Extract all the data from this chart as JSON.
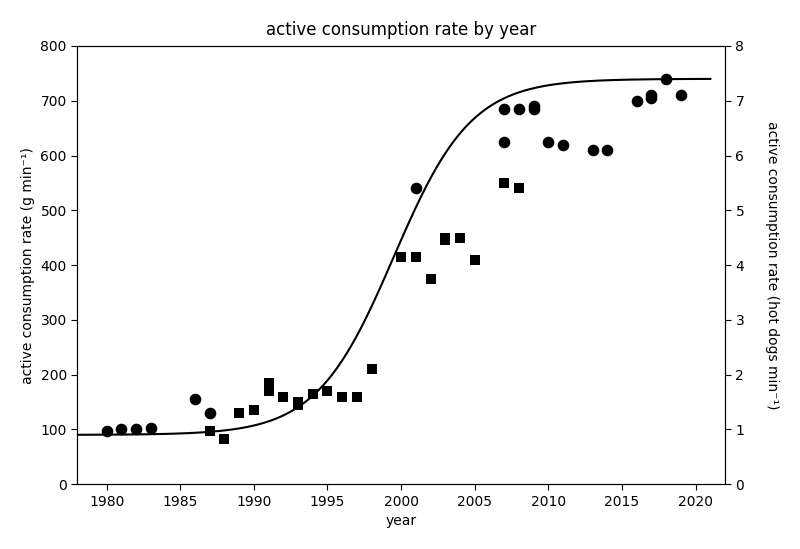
{
  "title": "active consumption rate by year",
  "xlabel": "year",
  "ylabel_left": "active consumption rate (g min⁻¹)",
  "ylabel_right": "active consumption rate (hot dogs min⁻¹)",
  "ylim_left": [
    0,
    800
  ],
  "ylim_right": [
    0,
    8
  ],
  "xlim": [
    1978,
    2022
  ],
  "yticks_left": [
    0,
    100,
    200,
    300,
    400,
    500,
    600,
    700,
    800
  ],
  "yticks_right": [
    0,
    1,
    2,
    3,
    4,
    5,
    6,
    7,
    8
  ],
  "xticks": [
    1980,
    1985,
    1990,
    1995,
    2000,
    2005,
    2010,
    2015,
    2020
  ],
  "circle_points": [
    [
      1980,
      97
    ],
    [
      1981,
      100
    ],
    [
      1982,
      100
    ],
    [
      1983,
      103
    ],
    [
      1986,
      155
    ],
    [
      1987,
      130
    ],
    [
      2001,
      540
    ],
    [
      2007,
      685
    ],
    [
      2007,
      625
    ],
    [
      2008,
      685
    ],
    [
      2009,
      685
    ],
    [
      2009,
      690
    ],
    [
      2010,
      625
    ],
    [
      2011,
      620
    ],
    [
      2013,
      610
    ],
    [
      2014,
      610
    ],
    [
      2016,
      700
    ],
    [
      2017,
      705
    ],
    [
      2017,
      710
    ],
    [
      2018,
      740
    ],
    [
      2019,
      710
    ]
  ],
  "square_points": [
    [
      1987,
      97
    ],
    [
      1988,
      82
    ],
    [
      1989,
      130
    ],
    [
      1990,
      135
    ],
    [
      1991,
      170
    ],
    [
      1991,
      185
    ],
    [
      1992,
      160
    ],
    [
      1993,
      145
    ],
    [
      1993,
      150
    ],
    [
      1994,
      165
    ],
    [
      1995,
      170
    ],
    [
      1996,
      160
    ],
    [
      1997,
      160
    ],
    [
      1998,
      210
    ],
    [
      2000,
      415
    ],
    [
      2001,
      415
    ],
    [
      2002,
      375
    ],
    [
      2003,
      450
    ],
    [
      2003,
      445
    ],
    [
      2004,
      450
    ],
    [
      2005,
      410
    ],
    [
      2007,
      550
    ],
    [
      2008,
      540
    ]
  ],
  "model_L": 650,
  "model_k": 0.38,
  "model_x0": 1999.5,
  "model_baseline": 90,
  "model_x_start": 1978,
  "model_x_end": 2021,
  "line_color": "#000000",
  "marker_color": "#000000",
  "background_color": "#ffffff",
  "font_family": "DejaVu Sans",
  "title_fontsize": 12,
  "label_fontsize": 10,
  "tick_fontsize": 10
}
